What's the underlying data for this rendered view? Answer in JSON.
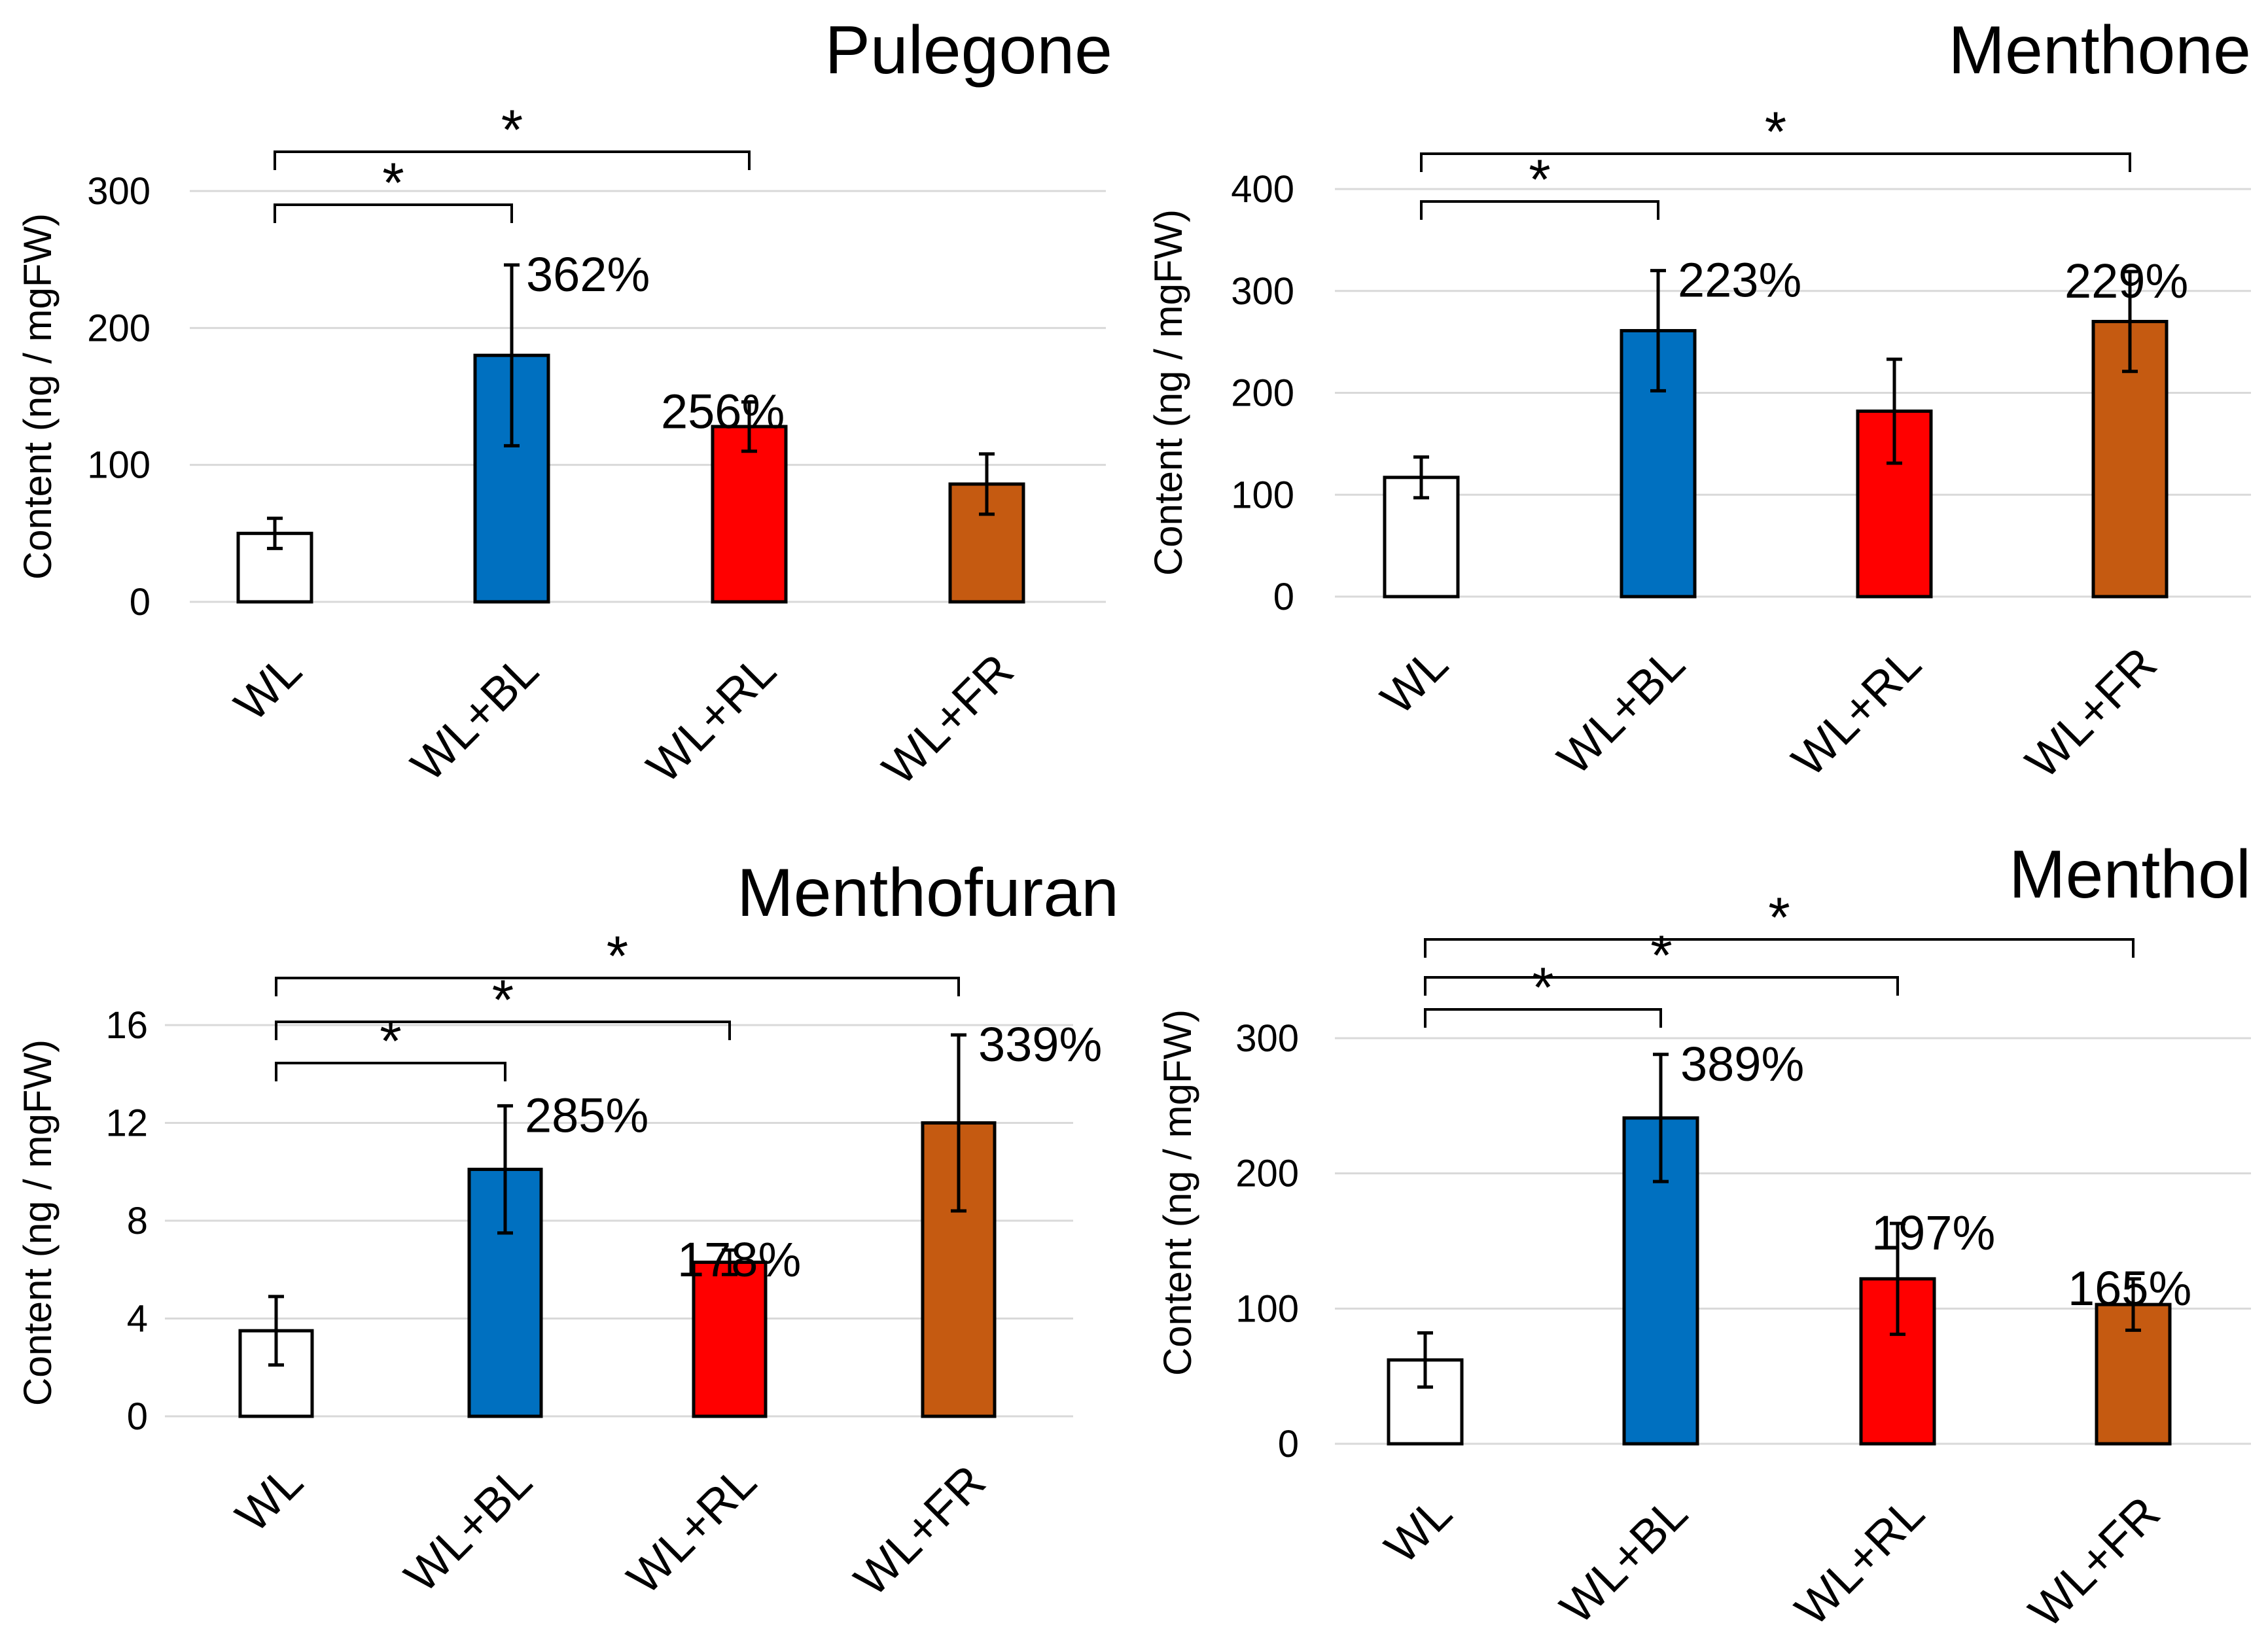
{
  "chart_data": [
    {
      "type": "bar",
      "title": "Pulegone",
      "ylabel": "Content (ng / mgFW)",
      "xlabel": "",
      "ylim": [
        0,
        300
      ],
      "yticks": [
        0,
        100,
        200,
        300
      ],
      "grid": true,
      "categories": [
        "WL",
        "WL+BL",
        "WL+RL",
        "WL+FR"
      ],
      "values": [
        50,
        180,
        128,
        86
      ],
      "errors": [
        11,
        66,
        18,
        22
      ],
      "percent_labels": [
        "",
        "362%",
        "256%",
        ""
      ],
      "colors": [
        "#ffffff",
        "#0070c0",
        "#ff0000",
        "#c55a11"
      ],
      "significance": [
        {
          "from": "WL",
          "to": "WL+BL",
          "label": "*"
        },
        {
          "from": "WL",
          "to": "WL+RL",
          "label": "*"
        }
      ]
    },
    {
      "type": "bar",
      "title": "Menthone",
      "ylabel": "Content (ng / mgFW)",
      "xlabel": "",
      "ylim": [
        0,
        400
      ],
      "yticks": [
        0,
        100,
        200,
        300,
        400
      ],
      "grid": true,
      "categories": [
        "WL",
        "WL+BL",
        "WL+RL",
        "WL+FR"
      ],
      "values": [
        117,
        261,
        182,
        270
      ],
      "errors": [
        20,
        59,
        51,
        49
      ],
      "percent_labels": [
        "",
        "223%",
        "",
        "229%"
      ],
      "colors": [
        "#ffffff",
        "#0070c0",
        "#ff0000",
        "#c55a11"
      ],
      "significance": [
        {
          "from": "WL",
          "to": "WL+BL",
          "label": "*"
        },
        {
          "from": "WL",
          "to": "WL+FR",
          "label": "*"
        }
      ]
    },
    {
      "type": "bar",
      "title": "Menthofuran",
      "ylabel": "Content (ng / mgFW)",
      "xlabel": "",
      "ylim": [
        0,
        16
      ],
      "yticks": [
        0,
        4,
        8,
        12,
        16
      ],
      "grid": true,
      "categories": [
        "WL",
        "WL+BL",
        "WL+RL",
        "WL+FR"
      ],
      "values": [
        3.5,
        10.1,
        6.3,
        12.0
      ],
      "errors": [
        1.4,
        2.6,
        0.5,
        3.6
      ],
      "percent_labels": [
        "",
        "285%",
        "178%",
        "339%"
      ],
      "colors": [
        "#ffffff",
        "#0070c0",
        "#ff0000",
        "#c55a11"
      ],
      "significance": [
        {
          "from": "WL",
          "to": "WL+BL",
          "label": "*"
        },
        {
          "from": "WL",
          "to": "WL+RL",
          "label": "*"
        },
        {
          "from": "WL",
          "to": "WL+FR",
          "label": "*"
        }
      ]
    },
    {
      "type": "bar",
      "title": "Menthol",
      "ylabel": "Content (ng / mgFW)",
      "xlabel": "",
      "ylim": [
        0,
        300
      ],
      "yticks": [
        0,
        100,
        200,
        300
      ],
      "grid": true,
      "categories": [
        "WL",
        "WL+BL",
        "WL+RL",
        "WL+FR"
      ],
      "values": [
        62,
        241,
        122,
        103
      ],
      "errors": [
        20,
        47,
        41,
        19
      ],
      "percent_labels": [
        "",
        "389%",
        "197%",
        "165%"
      ],
      "colors": [
        "#ffffff",
        "#0070c0",
        "#ff0000",
        "#c55a11"
      ],
      "significance": [
        {
          "from": "WL",
          "to": "WL+BL",
          "label": "*"
        },
        {
          "from": "WL",
          "to": "WL+RL",
          "label": "*"
        },
        {
          "from": "WL",
          "to": "WL+FR",
          "label": "*"
        }
      ]
    }
  ]
}
